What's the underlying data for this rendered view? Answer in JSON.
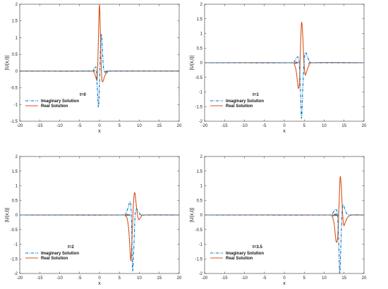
{
  "chart_data": [
    {
      "type": "line",
      "annotation": "t=0",
      "xlabel": "x",
      "ylabel": "|U(x,t)|",
      "xlim": [
        -20,
        20
      ],
      "ylim": [
        -1.5,
        2
      ],
      "xticks": [
        -20,
        -15,
        -10,
        -5,
        0,
        5,
        10,
        15,
        20
      ],
      "yticks": [
        -1.5,
        -1,
        -0.5,
        0,
        0.5,
        1,
        1.5,
        2
      ],
      "legend_position": "bottom-left",
      "series": [
        {
          "name": "Imaginary Solution",
          "color": "#0072bd",
          "style": "dashdot",
          "x": [
            -20,
            -3,
            -1.6,
            -1.0,
            -0.8,
            -0.5,
            -0.25,
            0,
            0.25,
            0.5,
            0.75,
            1.0,
            1.5,
            2.2,
            3,
            20
          ],
          "y": [
            0,
            0,
            0.05,
            0.12,
            0.05,
            -0.6,
            -1.08,
            -0.4,
            0.7,
            1.1,
            0.65,
            0.1,
            -0.05,
            -0.02,
            0,
            0
          ]
        },
        {
          "name": "Real Solution",
          "color": "#d95319",
          "style": "solid",
          "x": [
            -20,
            -3,
            -1.5,
            -1.0,
            -0.6,
            -0.4,
            -0.2,
            0,
            0.2,
            0.4,
            0.6,
            0.9,
            1.3,
            2,
            3,
            20
          ],
          "y": [
            0,
            0,
            -0.02,
            -0.15,
            -0.25,
            0.3,
            1.3,
            2.0,
            1.3,
            0.3,
            -0.25,
            -0.3,
            -0.15,
            -0.03,
            0,
            0
          ]
        }
      ]
    },
    {
      "type": "line",
      "annotation": "t=1",
      "xlabel": "x",
      "ylabel": "|U(x,t)|",
      "xlim": [
        -20,
        20
      ],
      "ylim": [
        -2,
        2
      ],
      "xticks": [
        -20,
        -15,
        -10,
        -5,
        0,
        5,
        10,
        15,
        20
      ],
      "yticks": [
        -2,
        -1.5,
        -1,
        -0.5,
        0,
        0.5,
        1,
        1.5,
        2
      ],
      "legend_position": "bottom-left",
      "series": [
        {
          "name": "Imaginary Solution",
          "color": "#0072bd",
          "style": "dashdot",
          "x": [
            -20,
            1.5,
            2.5,
            3.0,
            3.4,
            3.7,
            4.0,
            4.3,
            4.6,
            5.0,
            5.4,
            5.8,
            6.5,
            7.5,
            20
          ],
          "y": [
            0,
            0,
            0.05,
            0.15,
            0.2,
            0.05,
            -0.7,
            -1.9,
            -1.0,
            0.1,
            0.35,
            0.2,
            0.03,
            0,
            0
          ]
        },
        {
          "name": "Real Solution",
          "color": "#d95319",
          "style": "solid",
          "x": [
            -20,
            1.5,
            2.5,
            3.0,
            3.5,
            3.8,
            4.0,
            4.3,
            4.6,
            4.9,
            5.2,
            5.6,
            6.2,
            7.5,
            20
          ],
          "y": [
            0,
            0,
            -0.05,
            -0.3,
            -0.85,
            -0.7,
            0.2,
            1.35,
            1.0,
            0.1,
            -0.4,
            -0.3,
            -0.1,
            0,
            0
          ]
        }
      ]
    },
    {
      "type": "line",
      "annotation": "t=2",
      "xlabel": "x",
      "ylabel": "|U(x,t)|",
      "xlim": [
        -20,
        20
      ],
      "ylim": [
        -2,
        2
      ],
      "xticks": [
        -20,
        -15,
        -10,
        -5,
        0,
        5,
        10,
        15,
        20
      ],
      "yticks": [
        -2,
        -1.5,
        -1,
        -0.5,
        0,
        0.5,
        1,
        1.5,
        2
      ],
      "legend_position": "bottom-left",
      "series": [
        {
          "name": "Imaginary Solution",
          "color": "#0072bd",
          "style": "dashdot",
          "x": [
            -20,
            5.5,
            6.5,
            7.2,
            7.6,
            7.9,
            8.1,
            8.3,
            8.6,
            8.9,
            9.2,
            9.6,
            10.2,
            11,
            20
          ],
          "y": [
            0,
            0,
            0.05,
            0.25,
            0.45,
            0.3,
            -0.6,
            -1.9,
            -1.2,
            -0.1,
            0.2,
            0.15,
            0.03,
            0,
            0
          ]
        },
        {
          "name": "Real Solution",
          "color": "#d95319",
          "style": "solid",
          "x": [
            -20,
            5.5,
            6.5,
            7.0,
            7.4,
            7.8,
            8.0,
            8.3,
            8.6,
            8.9,
            9.3,
            9.8,
            10.5,
            11.5,
            20
          ],
          "y": [
            0,
            0,
            -0.03,
            -0.15,
            -0.6,
            -1.5,
            -1.35,
            -0.3,
            0.55,
            0.75,
            0.25,
            -0.15,
            -0.05,
            0,
            0
          ]
        }
      ]
    },
    {
      "type": "line",
      "annotation": "t=3.5",
      "xlabel": "x",
      "ylabel": "|U(x,t)|",
      "xlim": [
        -20,
        20
      ],
      "ylim": [
        -2,
        2
      ],
      "xticks": [
        -20,
        -15,
        -10,
        -5,
        0,
        5,
        10,
        15,
        20
      ],
      "yticks": [
        -2,
        -1.5,
        -1,
        -0.5,
        0,
        0.5,
        1,
        1.5,
        2
      ],
      "legend_position": "bottom-left",
      "series": [
        {
          "name": "Imaginary Solution",
          "color": "#0072bd",
          "style": "dashdot",
          "x": [
            -20,
            11,
            12,
            12.6,
            13.0,
            13.3,
            13.6,
            13.9,
            14.2,
            14.5,
            14.8,
            15.2,
            15.8,
            16.8,
            20
          ],
          "y": [
            0,
            0,
            0.05,
            0.15,
            0.2,
            0.05,
            -0.7,
            -2.0,
            -1.0,
            0.1,
            0.35,
            0.2,
            0.03,
            0,
            0
          ]
        },
        {
          "name": "Real Solution",
          "color": "#d95319",
          "style": "solid",
          "x": [
            -20,
            11,
            12,
            12.5,
            13.0,
            13.4,
            13.7,
            14.0,
            14.3,
            14.6,
            14.9,
            15.3,
            15.9,
            17,
            20
          ],
          "y": [
            0,
            0,
            -0.05,
            -0.3,
            -0.9,
            -0.75,
            0.2,
            1.28,
            0.95,
            0.1,
            -0.35,
            -0.25,
            -0.08,
            0,
            0
          ]
        }
      ]
    }
  ]
}
